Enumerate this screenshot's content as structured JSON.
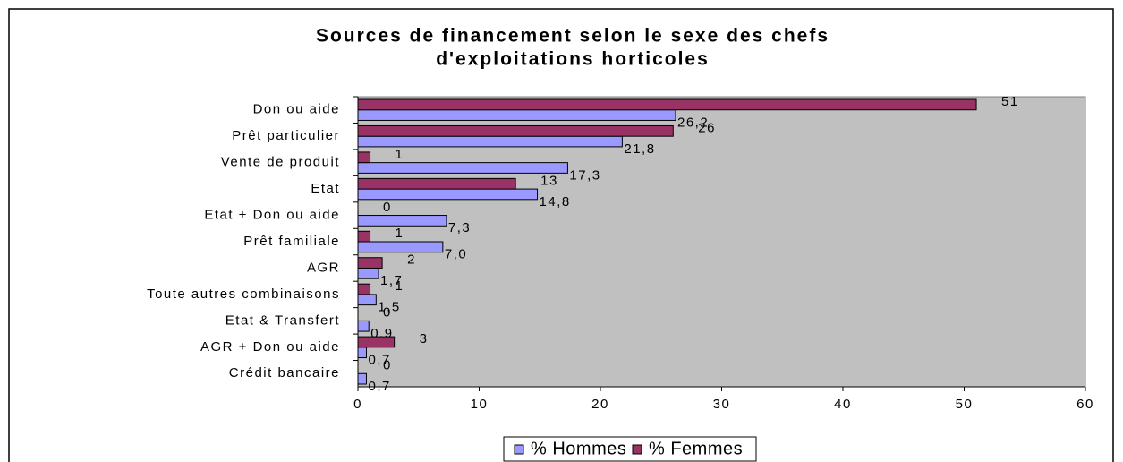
{
  "chart_data": {
    "type": "bar",
    "orientation": "horizontal",
    "title": [
      "Sources de financement selon le sexe des chefs",
      "d'exploitations horticoles"
    ],
    "categories": [
      "Don ou aide",
      "Prêt particulier",
      "Vente de produit",
      "Etat",
      "Etat + Don ou aide",
      "Prêt familiale",
      "AGR",
      "Toute autres combinaisons",
      "Etat & Transfert",
      "AGR + Don ou aide",
      "Crédit bancaire"
    ],
    "series": [
      {
        "name": "% Hommes",
        "color": "#9999ff",
        "values": [
          26.2,
          21.8,
          17.3,
          14.8,
          7.3,
          7.0,
          1.7,
          1.5,
          0.9,
          0.7,
          0.7
        ],
        "value_labels": [
          "26,2",
          "21,8",
          "17,3",
          "14,8",
          "7,3",
          "7,0",
          "1,7",
          "1,5",
          "0,9",
          "0,7",
          "0,7"
        ]
      },
      {
        "name": "% Femmes",
        "color": "#993366",
        "values": [
          51,
          26,
          1,
          13,
          0,
          1,
          2,
          1,
          0,
          3,
          0
        ]
      }
    ],
    "xlim": [
      0,
      60
    ],
    "xticks": [
      0,
      10,
      20,
      30,
      40,
      50,
      60
    ],
    "legend": "bottom"
  }
}
